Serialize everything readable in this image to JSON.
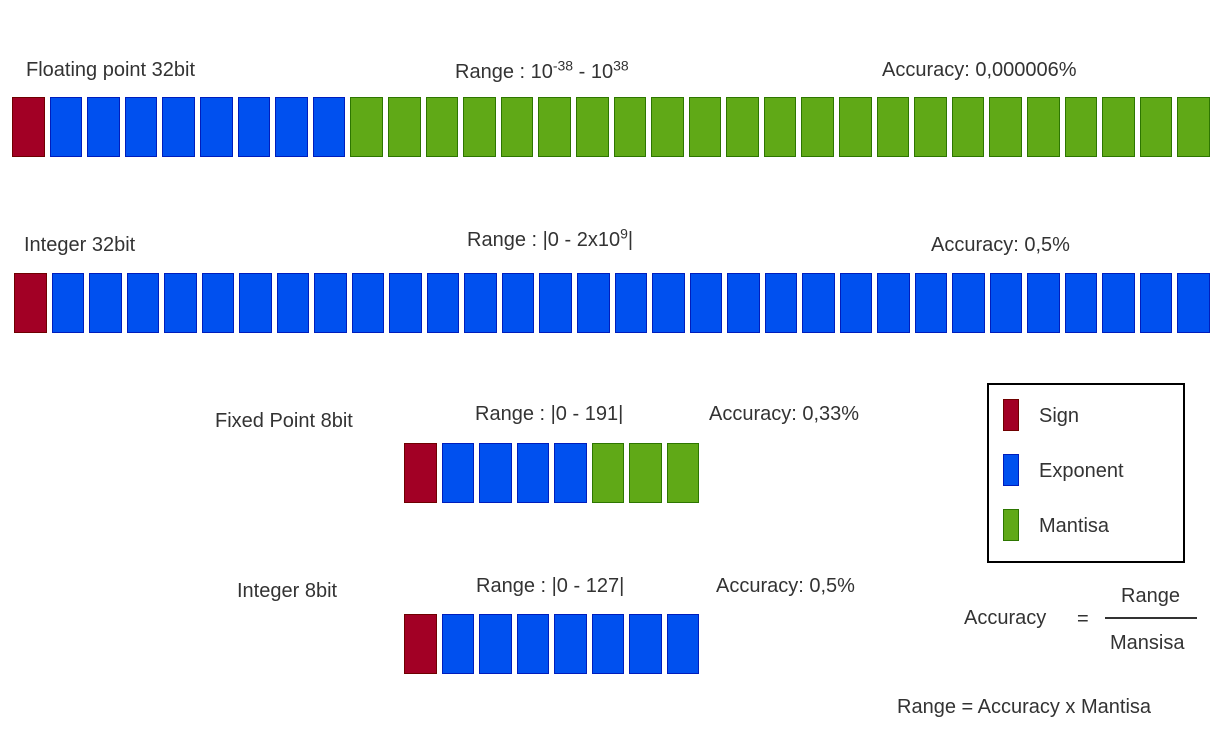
{
  "rows": [
    {
      "title": "Floating point 32bit",
      "range_prefix": "Range : 10",
      "range_exp1": "-38",
      "range_mid": " - 10",
      "range_exp2": "38",
      "accuracy": "Accuracy: 0,000006%",
      "bits": {
        "sign": 1,
        "exponent": 8,
        "mantissa": 23
      }
    },
    {
      "title": "Integer 32bit",
      "range_prefix": "Range : |0 - 2x10",
      "range_exp": "9",
      "range_suffix": "|",
      "accuracy": "Accuracy: 0,5%",
      "bits": {
        "sign": 1,
        "exponent": 31,
        "mantissa": 0
      }
    },
    {
      "title": "Fixed Point 8bit",
      "range": "Range : |0 - 191|",
      "accuracy": "Accuracy: 0,33%",
      "bits": {
        "sign": 1,
        "exponent": 4,
        "mantissa": 3
      }
    },
    {
      "title": "Integer 8bit",
      "range": "Range : |0 - 127|",
      "accuracy": "Accuracy: 0,5%",
      "bits": {
        "sign": 1,
        "exponent": 7,
        "mantissa": 0
      }
    }
  ],
  "legend": {
    "sign": "Sign",
    "exponent": "Exponent",
    "mantissa": "Mantisa"
  },
  "formula": {
    "lhs": "Accuracy",
    "equals": "=",
    "numerator": "Range",
    "denominator": "Mansisa",
    "second": "Range = Accuracy x Mantisa"
  },
  "colors": {
    "sign": "#a20025",
    "exponent": "#0050ef",
    "mantissa": "#60a917"
  }
}
